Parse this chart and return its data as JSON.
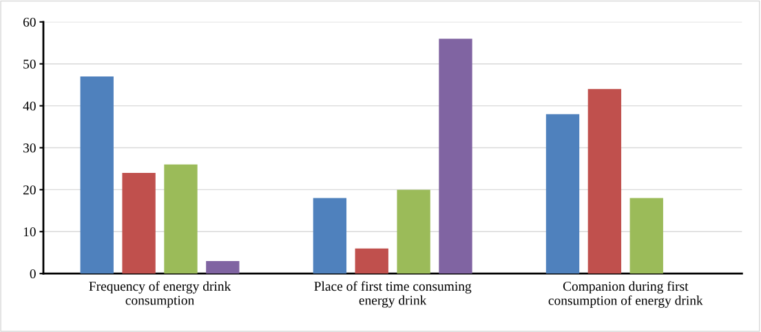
{
  "chart_data": {
    "type": "bar",
    "categories": [
      "Frequency of energy drink\nconsumption",
      "Place of first time consuming\nenergy drink",
      "Companion during first\nconsumption of energy drink"
    ],
    "series": [
      {
        "color": "#4f81bd",
        "values": [
          47,
          18,
          38
        ]
      },
      {
        "color": "#c0504d",
        "values": [
          24,
          6,
          44
        ]
      },
      {
        "color": "#9bbb59",
        "values": [
          26,
          20,
          18
        ]
      },
      {
        "color": "#8064a2",
        "values": [
          3,
          56,
          null
        ]
      }
    ],
    "ylim": [
      0,
      60
    ],
    "yticks": [
      0,
      10,
      20,
      30,
      40,
      50,
      60
    ],
    "grid": "y"
  }
}
